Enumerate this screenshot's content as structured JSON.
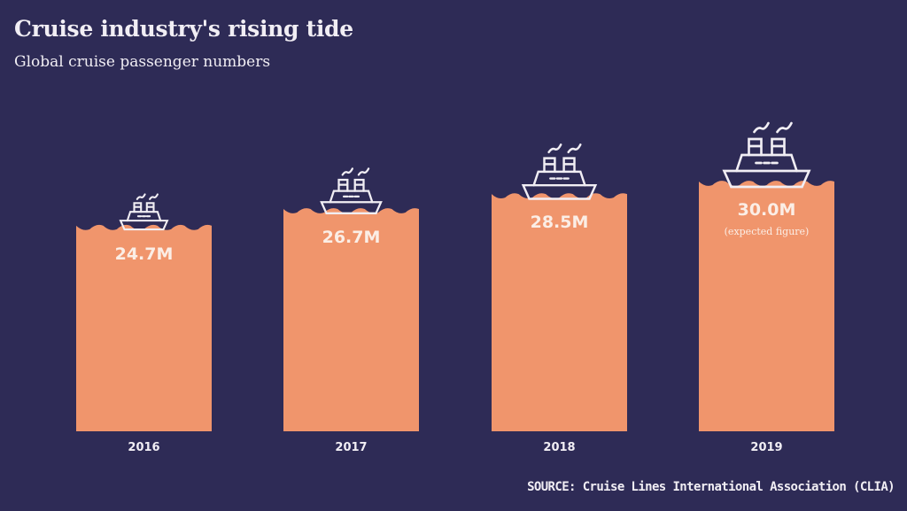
{
  "chart_data": {
    "type": "bar",
    "title": "Cruise industry's rising tide",
    "subtitle": "Global cruise passenger numbers",
    "categories": [
      "2016",
      "2017",
      "2018",
      "2019"
    ],
    "values": [
      24.7,
      26.7,
      28.5,
      30.0
    ],
    "data_labels": [
      "24.7M",
      "26.7M",
      "28.5M",
      "30.0M"
    ],
    "annotations": [
      "",
      "",
      "",
      "(expected figure)"
    ],
    "unit": "M",
    "source": "SOURCE: Cruise Lines International Association (CLIA)",
    "grid": false,
    "colors": {
      "background": "#2e2b56",
      "bar": "#f0956c",
      "text": "#f1eef4"
    }
  }
}
